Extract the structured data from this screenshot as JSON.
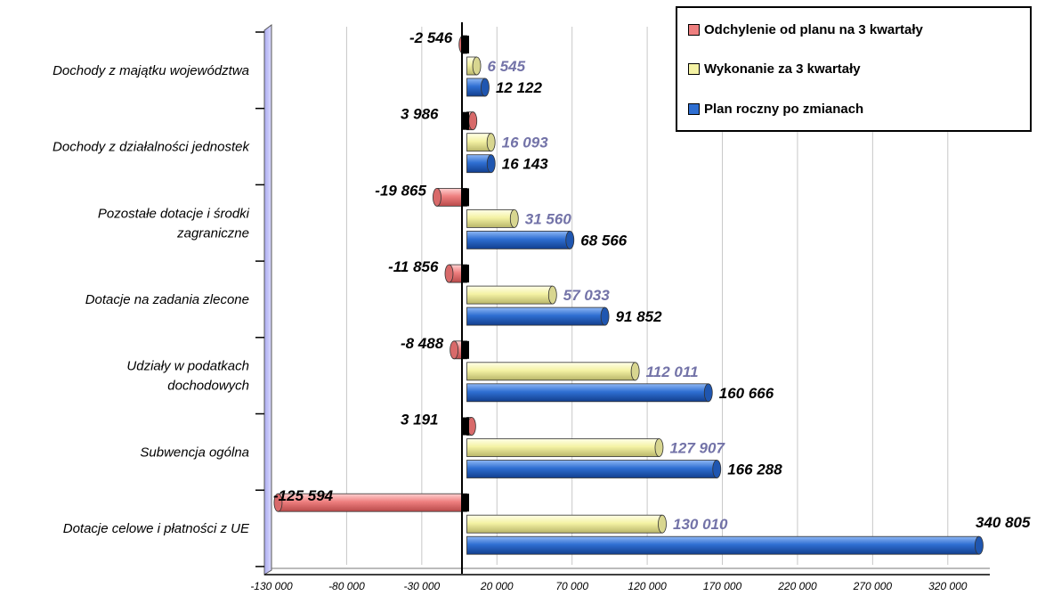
{
  "chart_data": {
    "type": "bar",
    "orientation": "horizontal",
    "categories": [
      "Dochody z majątku województwa",
      "Dochody z działalności jednostek",
      "Pozostałe dotacje i środki zagraniczne",
      "Dotacje na zadania zlecone",
      "Udziały w podatkach dochodowych",
      "Subwencja ogólna",
      "Dotacje celowe i płatności z UE"
    ],
    "category_lines": [
      [
        "Dochody z majątku województwa"
      ],
      [
        "Dochody z działalności jednostek"
      ],
      [
        "Pozostałe dotacje i środki",
        "zagraniczne"
      ],
      [
        "Dotacje na zadania zlecone"
      ],
      [
        "Udziały w podatkach",
        "dochodowych"
      ],
      [
        "Subwencja ogólna"
      ],
      [
        "Dotacje celowe i płatności z UE"
      ]
    ],
    "series": [
      {
        "name": "Odchylenie od planu na 3 kwartały",
        "color": "#ee7f7f",
        "label_color": "#000000",
        "values": [
          -2546,
          3986,
          -19865,
          -11856,
          -8488,
          3191,
          -125594
        ],
        "labels": [
          "-2 546",
          "3 986",
          "-19 865",
          "-11 856",
          "-8 488",
          "3 191",
          "-125 594"
        ]
      },
      {
        "name": "Wykonanie za 3 kwartały",
        "color": "#f4f2a4",
        "label_color": "#7373a8",
        "values": [
          6545,
          16093,
          31560,
          57033,
          112011,
          127907,
          130010
        ],
        "labels": [
          "6 545",
          "16 093",
          "31 560",
          "57 033",
          "112 011",
          "127 907",
          "130 010"
        ]
      },
      {
        "name": "Plan roczny po zmianach",
        "color": "#2f6fd2",
        "label_color": "#000000",
        "values": [
          12122,
          16143,
          68566,
          91852,
          160666,
          166288,
          340805
        ],
        "labels": [
          "12 122",
          "16 143",
          "68 566",
          "91 852",
          "160 666",
          "166 288",
          "340 805"
        ]
      }
    ],
    "xlim": [
      -130000,
      345000
    ],
    "x_ticks": [
      -130000,
      -80000,
      -30000,
      20000,
      70000,
      120000,
      170000,
      220000,
      270000,
      320000
    ],
    "x_tick_labels": [
      "-130 000",
      "-80 000",
      "-30 000",
      "20 000",
      "70 000",
      "120 000",
      "170 000",
      "220 000",
      "270 000",
      "320 000"
    ],
    "grid": "vertical",
    "legend_position": "top-right"
  }
}
